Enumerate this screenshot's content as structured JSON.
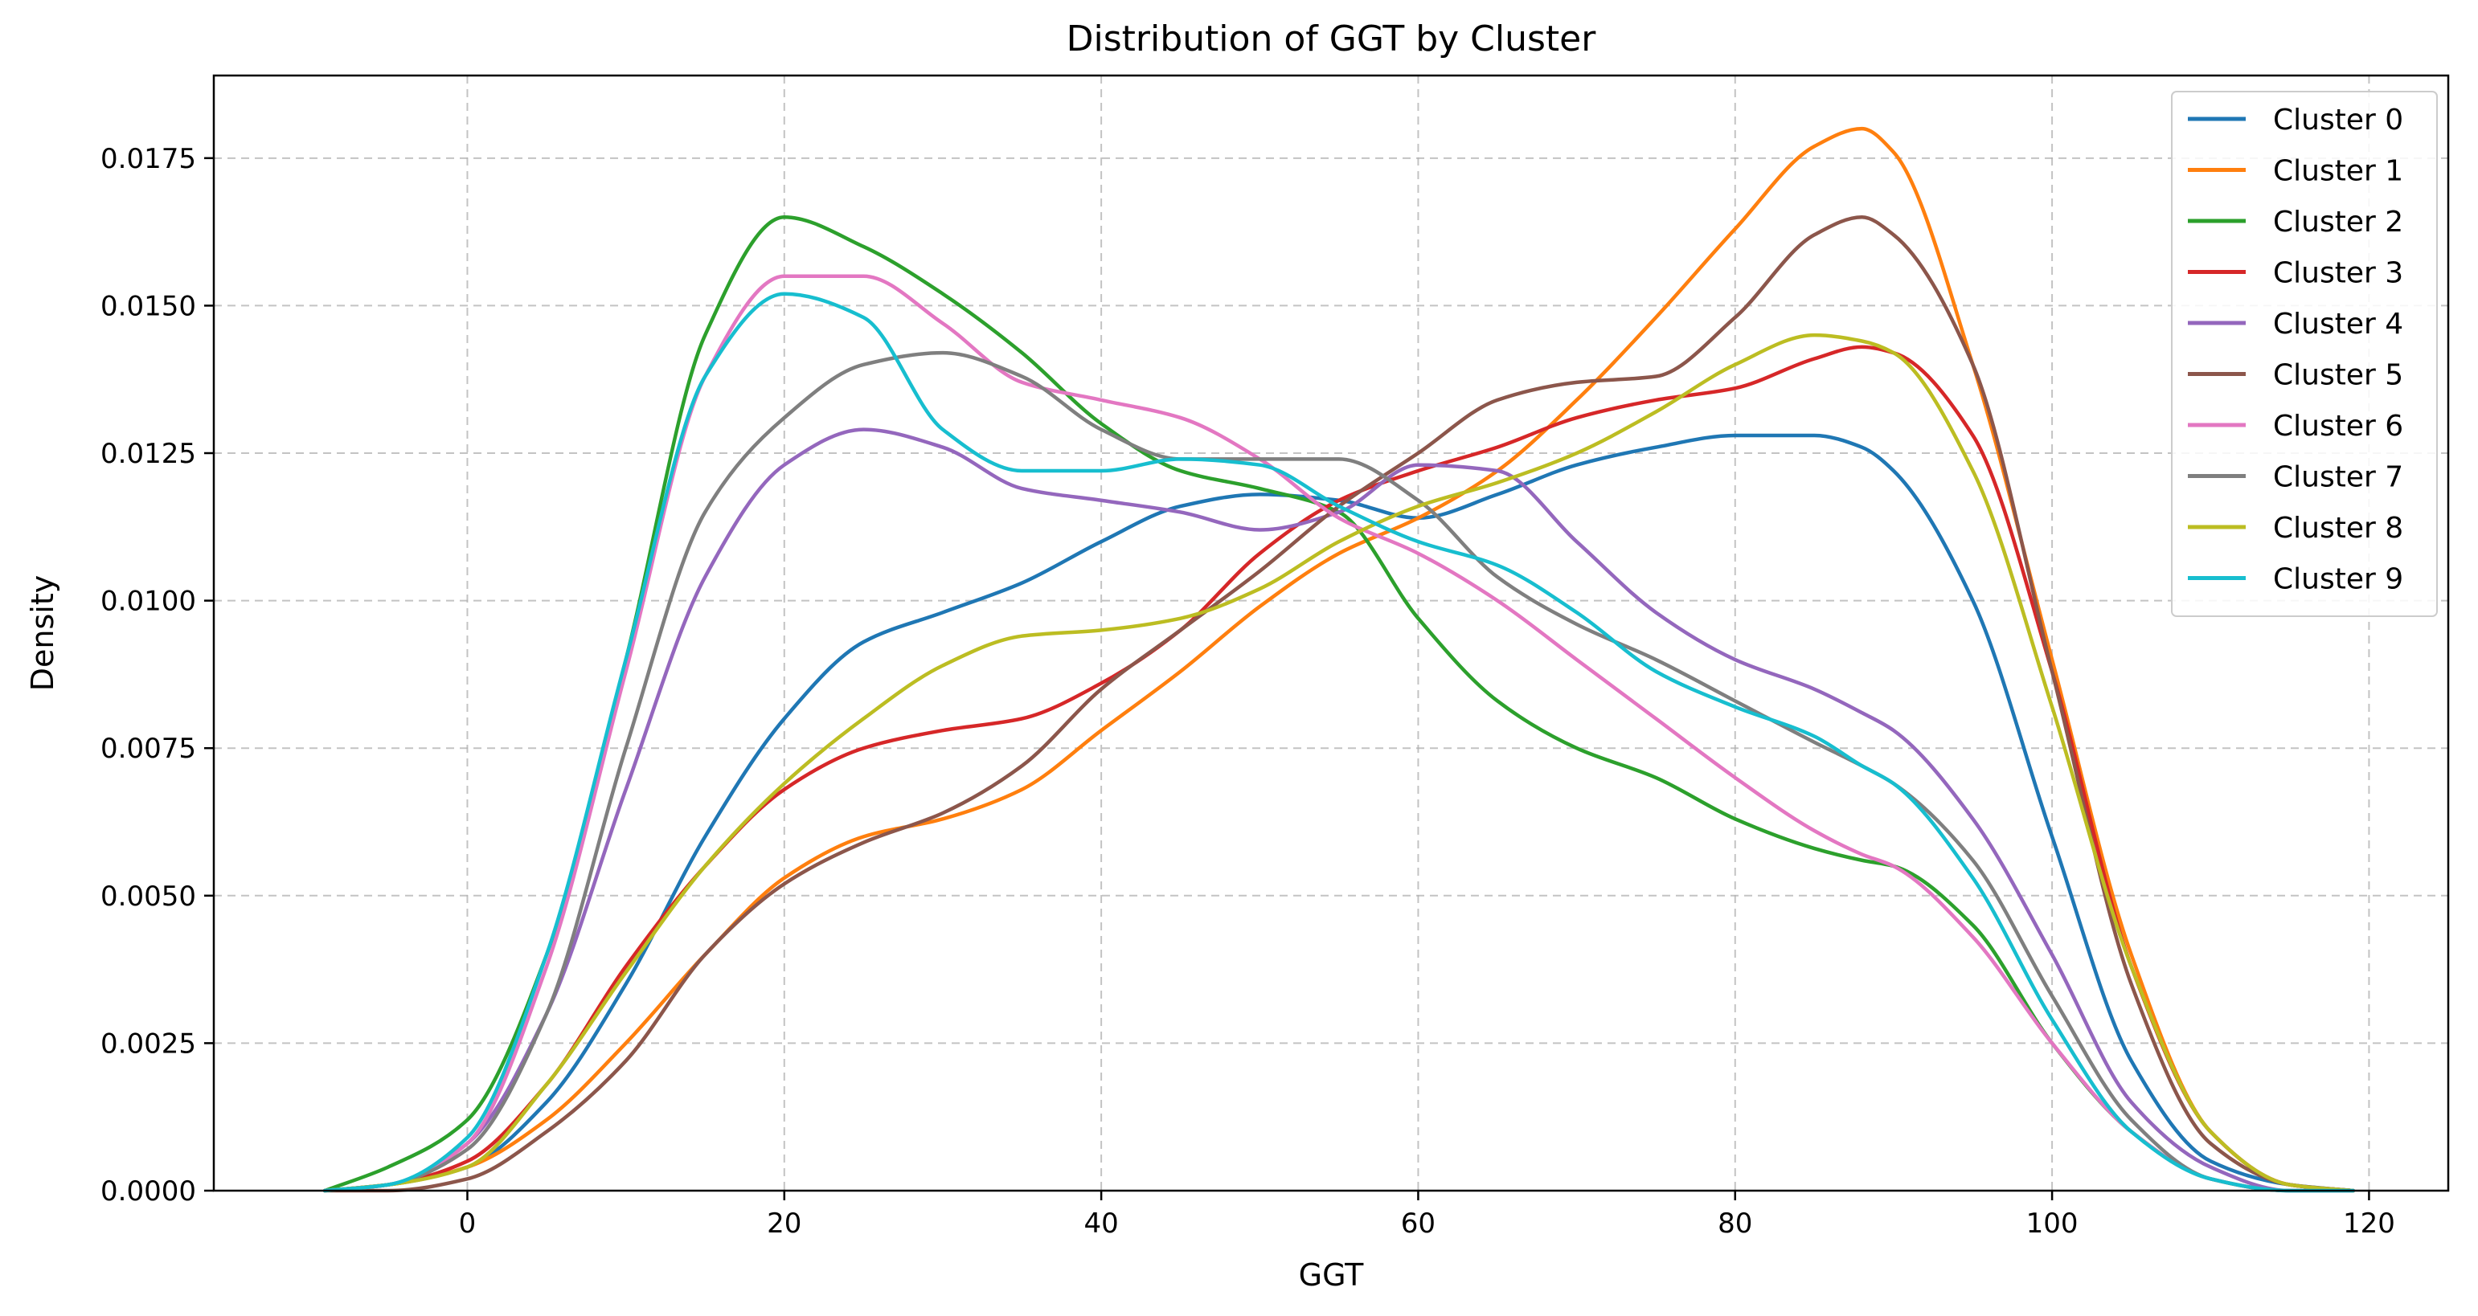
{
  "chart_data": {
    "type": "line",
    "title": "Distribution of GGT by Cluster",
    "xlabel": "GGT",
    "ylabel": "Density",
    "xlim": [
      -16,
      125
    ],
    "ylim": [
      0,
      0.0189
    ],
    "xticks": [
      0,
      20,
      40,
      60,
      80,
      100,
      120
    ],
    "xtick_labels": [
      "0",
      "20",
      "40",
      "60",
      "80",
      "100",
      "120"
    ],
    "yticks": [
      0,
      0.0025,
      0.005,
      0.0075,
      0.01,
      0.0125,
      0.015,
      0.0175
    ],
    "ytick_labels": [
      "0.0000",
      "0.0025",
      "0.0050",
      "0.0075",
      "0.0100",
      "0.0125",
      "0.0150",
      "0.0175"
    ],
    "grid": true,
    "legend_position": "top-right",
    "x": [
      -9,
      -5,
      0,
      5,
      10,
      15,
      20,
      25,
      30,
      35,
      40,
      45,
      50,
      55,
      60,
      65,
      70,
      75,
      80,
      85,
      88,
      90,
      95,
      100,
      105,
      110,
      115,
      119
    ],
    "series": [
      {
        "name": "Cluster 0",
        "color": "#1f77b4",
        "values": [
          0.0,
          0.0001,
          0.0004,
          0.0015,
          0.0035,
          0.006,
          0.008,
          0.0093,
          0.0098,
          0.0103,
          0.011,
          0.0116,
          0.0118,
          0.0117,
          0.0114,
          0.0118,
          0.0123,
          0.0126,
          0.0128,
          0.0128,
          0.0126,
          0.0122,
          0.01,
          0.006,
          0.0022,
          0.0005,
          0.0001,
          0.0
        ]
      },
      {
        "name": "Cluster 1",
        "color": "#ff7f0e",
        "values": [
          0.0,
          0.0001,
          0.0004,
          0.0012,
          0.0025,
          0.004,
          0.0053,
          0.006,
          0.0063,
          0.0068,
          0.0078,
          0.0088,
          0.0099,
          0.0108,
          0.0114,
          0.0122,
          0.0134,
          0.0148,
          0.0163,
          0.0177,
          0.018,
          0.0176,
          0.014,
          0.009,
          0.004,
          0.001,
          0.0001,
          0.0
        ]
      },
      {
        "name": "Cluster 2",
        "color": "#2ca02c",
        "values": [
          0.0,
          0.0004,
          0.0012,
          0.004,
          0.009,
          0.0145,
          0.0165,
          0.016,
          0.0152,
          0.0142,
          0.013,
          0.0122,
          0.0119,
          0.0115,
          0.0097,
          0.0083,
          0.0075,
          0.007,
          0.0063,
          0.0058,
          0.0056,
          0.0055,
          0.0045,
          0.0025,
          0.001,
          0.0002,
          0.0,
          0.0
        ]
      },
      {
        "name": "Cluster 3",
        "color": "#d62728",
        "values": [
          0.0,
          0.0001,
          0.0005,
          0.0018,
          0.0038,
          0.0055,
          0.0068,
          0.0075,
          0.0078,
          0.008,
          0.0086,
          0.0095,
          0.0108,
          0.0117,
          0.0122,
          0.0126,
          0.0131,
          0.0134,
          0.0136,
          0.0141,
          0.0143,
          0.0142,
          0.0128,
          0.0088,
          0.0038,
          0.001,
          0.0001,
          0.0
        ]
      },
      {
        "name": "Cluster 4",
        "color": "#9467bd",
        "values": [
          0.0,
          0.0001,
          0.0008,
          0.003,
          0.0068,
          0.0104,
          0.0123,
          0.0129,
          0.0126,
          0.0119,
          0.0117,
          0.0115,
          0.0112,
          0.0115,
          0.0123,
          0.0122,
          0.011,
          0.0098,
          0.009,
          0.0085,
          0.0081,
          0.0078,
          0.0063,
          0.004,
          0.0015,
          0.0004,
          0.0,
          0.0
        ]
      },
      {
        "name": "Cluster 5",
        "color": "#8c564b",
        "values": [
          0.0,
          0.0,
          0.0002,
          0.001,
          0.0022,
          0.004,
          0.0052,
          0.0059,
          0.0064,
          0.0072,
          0.0085,
          0.0095,
          0.0105,
          0.0116,
          0.0125,
          0.0134,
          0.0137,
          0.0138,
          0.0148,
          0.0162,
          0.0165,
          0.0162,
          0.014,
          0.0088,
          0.0035,
          0.0008,
          0.0001,
          0.0
        ]
      },
      {
        "name": "Cluster 6",
        "color": "#e377c2",
        "values": [
          0.0,
          0.0001,
          0.0008,
          0.0038,
          0.0088,
          0.0138,
          0.0155,
          0.0155,
          0.0147,
          0.0137,
          0.0134,
          0.0131,
          0.0124,
          0.0114,
          0.0108,
          0.01,
          0.009,
          0.008,
          0.007,
          0.0061,
          0.0057,
          0.0055,
          0.0043,
          0.0025,
          0.001,
          0.0002,
          0.0,
          0.0
        ]
      },
      {
        "name": "Cluster 7",
        "color": "#7f7f7f",
        "values": [
          0.0,
          0.0001,
          0.0007,
          0.003,
          0.0075,
          0.0115,
          0.0131,
          0.014,
          0.0142,
          0.0138,
          0.0129,
          0.0124,
          0.0124,
          0.0124,
          0.0117,
          0.0104,
          0.0096,
          0.009,
          0.0083,
          0.0076,
          0.0072,
          0.0069,
          0.0056,
          0.0033,
          0.0012,
          0.0002,
          0.0,
          0.0
        ]
      },
      {
        "name": "Cluster 8",
        "color": "#bcbd22",
        "values": [
          0.0,
          0.0001,
          0.0004,
          0.0018,
          0.0037,
          0.0055,
          0.0069,
          0.008,
          0.0089,
          0.0094,
          0.0095,
          0.0097,
          0.0102,
          0.011,
          0.0116,
          0.012,
          0.0125,
          0.0132,
          0.014,
          0.0145,
          0.0144,
          0.0142,
          0.0122,
          0.0082,
          0.0038,
          0.001,
          0.0001,
          0.0
        ]
      },
      {
        "name": "Cluster 9",
        "color": "#17becf",
        "values": [
          0.0,
          0.0001,
          0.0009,
          0.004,
          0.009,
          0.0138,
          0.0152,
          0.0148,
          0.0129,
          0.0122,
          0.0122,
          0.0124,
          0.0123,
          0.0116,
          0.011,
          0.0106,
          0.0098,
          0.0088,
          0.0082,
          0.0077,
          0.0072,
          0.0069,
          0.0053,
          0.0029,
          0.001,
          0.0002,
          0.0,
          0.0
        ]
      }
    ]
  }
}
